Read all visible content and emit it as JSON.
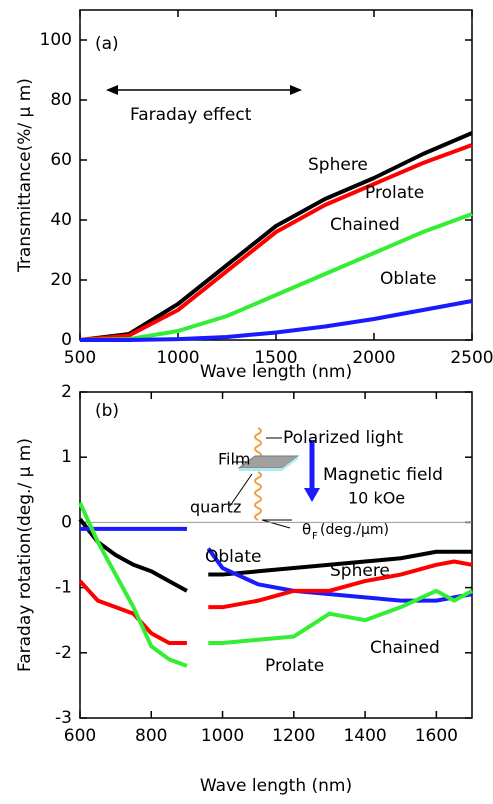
{
  "chart_data": [
    {
      "type": "line",
      "annotations": [
        "(a)",
        "Faraday effect"
      ],
      "xlabel": "Wave length (nm)",
      "ylabel": "Transmittance(%/ μ m)",
      "x": [
        500,
        750,
        1000,
        1250,
        1500,
        1750,
        2000,
        2250,
        2500
      ],
      "series": [
        {
          "name": "Sphere",
          "color": "#000000",
          "values": [
            0,
            2,
            12,
            25,
            38,
            47,
            54,
            62,
            69
          ]
        },
        {
          "name": "Prolate",
          "color": "#ff0000",
          "values": [
            0,
            1.5,
            10,
            23,
            36,
            45,
            52,
            59,
            65
          ]
        },
        {
          "name": "Chained",
          "color": "#33ee33",
          "values": [
            0,
            0.3,
            3,
            8,
            15,
            22,
            29,
            36,
            42
          ]
        },
        {
          "name": "Oblate",
          "color": "#1a1aff",
          "values": [
            0,
            0,
            0.3,
            1,
            2.5,
            4.5,
            7,
            10,
            13
          ]
        }
      ],
      "xlim": [
        500,
        2500
      ],
      "xticks": [
        500,
        1000,
        1500,
        2000,
        2500
      ],
      "ylim": [
        0,
        110
      ],
      "yticks": [
        0,
        20,
        40,
        60,
        80,
        100
      ]
    },
    {
      "type": "line",
      "annotations": [
        "(b)",
        "Polarized light",
        "Film",
        "Magnetic field",
        "10 kOe",
        "quartz",
        "θ",
        "F",
        "(deg./μm)"
      ],
      "xlabel": "Wave length (nm)",
      "ylabel": "Faraday rotation(deg./ μ m)",
      "x": [
        600,
        650,
        700,
        750,
        800,
        850,
        900,
        930,
        960,
        1000,
        1100,
        1200,
        1300,
        1400,
        1500,
        1600,
        1650,
        1700
      ],
      "series": [
        {
          "name": "Sphere",
          "color": "#000000",
          "values": [
            0.05,
            -0.3,
            -0.5,
            -0.65,
            -0.75,
            -0.9,
            -1.05,
            null,
            -0.8,
            -0.8,
            -0.75,
            -0.7,
            -0.65,
            -0.6,
            -0.55,
            -0.45,
            -0.45,
            -0.45
          ]
        },
        {
          "name": "Oblate",
          "color": "#1a1aff",
          "values": [
            -0.1,
            -0.1,
            -0.1,
            -0.1,
            -0.1,
            -0.1,
            -0.1,
            null,
            -0.4,
            -0.7,
            -0.95,
            -1.05,
            -1.1,
            -1.15,
            -1.2,
            -1.2,
            -1.15,
            -1.1
          ]
        },
        {
          "name": "Prolate",
          "color": "#ff0000",
          "values": [
            -0.9,
            -1.2,
            -1.3,
            -1.4,
            -1.7,
            -1.85,
            -1.85,
            null,
            -1.3,
            -1.3,
            -1.2,
            -1.05,
            -1.05,
            -0.9,
            -0.8,
            -0.65,
            -0.6,
            -0.65
          ]
        },
        {
          "name": "Chained",
          "color": "#33ee33",
          "values": [
            0.3,
            -0.3,
            -0.8,
            -1.3,
            -1.9,
            -2.1,
            -2.2,
            null,
            -1.85,
            -1.85,
            -1.8,
            -1.75,
            -1.4,
            -1.5,
            -1.3,
            -1.05,
            -1.2,
            -1.05
          ]
        }
      ],
      "xlim": [
        600,
        1700
      ],
      "xticks": [
        600,
        800,
        1000,
        1200,
        1400,
        1600
      ],
      "ylim": [
        -3,
        2
      ],
      "yticks": [
        -3,
        -2,
        -1,
        0,
        1,
        2
      ],
      "zero_line": true
    }
  ]
}
